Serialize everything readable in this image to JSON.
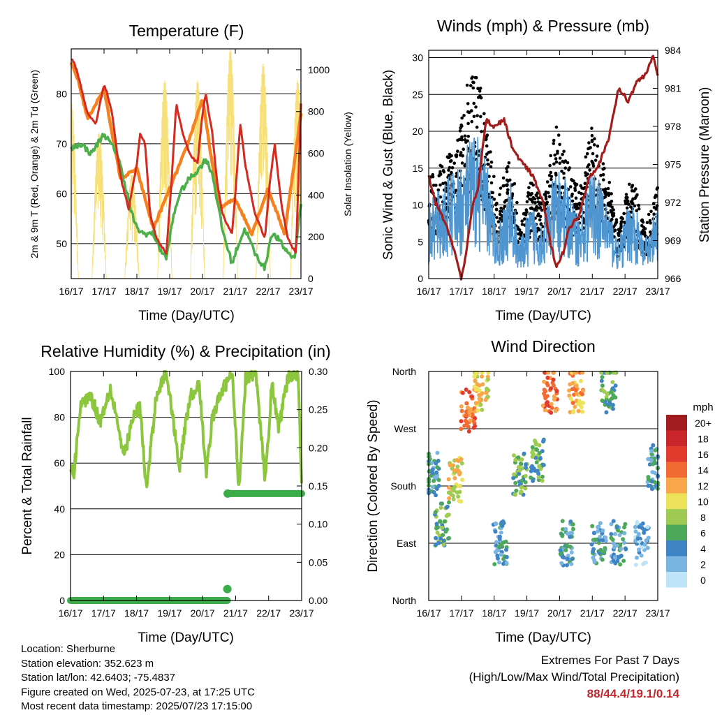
{
  "charts": {
    "temperature": {
      "title": "Temperature (F)",
      "xlabel": "Time (Day/UTC)",
      "ylabel": "2m & 9m T (Red, Orange) & 2m Td (Green)",
      "y2label": "Solar Insolation (Yellow)",
      "xticks": [
        "16/17",
        "17/17",
        "18/17",
        "19/17",
        "20/17",
        "21/17",
        "22/17",
        "23/17"
      ],
      "yticks": [
        "50",
        "60",
        "70",
        "80"
      ],
      "y2ticks": [
        "0",
        "200",
        "400",
        "600",
        "800",
        "1000"
      ]
    },
    "winds": {
      "title": "Winds (mph) & Pressure (mb)",
      "xlabel": "Time (Day/UTC)",
      "ylabel": "Sonic Wind & Gust (Blue, Black)",
      "y2label": "Station Pressure (Maroon)",
      "xticks": [
        "16/17",
        "17/17",
        "18/17",
        "19/17",
        "20/17",
        "21/17",
        "22/17",
        "23/17"
      ],
      "yticks": [
        "0",
        "5",
        "10",
        "15",
        "20",
        "25",
        "30"
      ],
      "y2ticks": [
        "966",
        "969",
        "972",
        "975",
        "978",
        "981",
        "984"
      ]
    },
    "humidity": {
      "title": "Relative Humidity (%) & Precipitation (in)",
      "xlabel": "Time (Day/UTC)",
      "ylabel": "Percent & Total Rainfall",
      "xticks": [
        "16/17",
        "17/17",
        "18/17",
        "19/17",
        "20/17",
        "21/17",
        "22/17",
        "23/17"
      ],
      "yticks": [
        "0",
        "20",
        "40",
        "60",
        "80",
        "100"
      ],
      "y2ticks": [
        "0.00",
        "0.05",
        "0.10",
        "0.15",
        "0.20",
        "0.25",
        "0.30"
      ]
    },
    "direction": {
      "title": "Wind Direction",
      "xlabel": "Time (Day/UTC)",
      "ylabel": "Direction (Colored By Speed)",
      "xticks": [
        "16/17",
        "17/17",
        "18/17",
        "19/17",
        "20/17",
        "21/17",
        "22/17",
        "23/17"
      ],
      "yticks": [
        "North",
        "East",
        "South",
        "West",
        "North"
      ],
      "legend_title": "mph",
      "legend_labels": [
        "20+",
        "18",
        "16",
        "14",
        "12",
        "10",
        "8",
        "6",
        "4",
        "2",
        "0"
      ],
      "legend_colors": [
        "#a01c1e",
        "#c9262b",
        "#e23a2d",
        "#f26b33",
        "#f9a64a",
        "#ede35a",
        "#9fcb52",
        "#4ea85a",
        "#3f84c4",
        "#7ab5e2",
        "#bfe3f7"
      ]
    }
  },
  "info": {
    "location": "Location: Sherburne",
    "elevation": "Station elevation: 352.623 m",
    "latlon": "Station lat/lon: 42.6403; -75.4837",
    "created": "Figure created on Wed, 2025-07-23, at 17:25 UTC",
    "recent": "Most recent data timestamp: 2025/07/23 17:15:00"
  },
  "extremes": {
    "title": "Extremes For Past 7 Days",
    "subtitle": "(High/Low/Max Wind/Total Precipitation)",
    "values": "88/44.4/19.1/0.14"
  },
  "colors": {
    "temp2m": "#d42a20",
    "temp9m": "#f5821f",
    "dewpoint": "#4daf4a",
    "solar": "#f7e07a",
    "gust": "#000000",
    "wind": "#4f96d1",
    "pressure": "#a31d1d",
    "rh": "#8cc63e",
    "precip": "#3aad48"
  },
  "chart_data": [
    {
      "type": "line",
      "title": "Temperature (F)",
      "x_range": [
        "16/17",
        "23/17"
      ],
      "x_days": [
        0,
        1,
        2,
        3,
        4,
        5,
        6,
        7
      ],
      "ylim": [
        43,
        89
      ],
      "y2lim": [
        0,
        1100
      ],
      "series": [
        {
          "name": "2m T (Red)",
          "x": [
            0,
            0.1,
            0.2,
            0.35,
            0.5,
            0.75,
            1.0,
            1.1,
            1.25,
            1.4,
            1.55,
            1.75,
            2.0,
            2.1,
            2.25,
            2.4,
            2.6,
            2.9,
            3.05,
            3.2,
            3.4,
            3.6,
            3.85,
            4.0,
            4.1,
            4.3,
            4.45,
            4.6,
            4.9,
            5.0,
            5.15,
            5.3,
            5.6,
            5.9,
            6.05,
            6.2,
            6.4,
            6.6,
            6.85,
            7.0
          ],
          "y": [
            87,
            86,
            84,
            80,
            76,
            74,
            82,
            80,
            76,
            68,
            62,
            57,
            66,
            72,
            70,
            56,
            51,
            48,
            62,
            78,
            72,
            68,
            66,
            76,
            80,
            72,
            62,
            56,
            52,
            60,
            74,
            66,
            56,
            51,
            62,
            70,
            58,
            51,
            48,
            78
          ]
        },
        {
          "name": "9m T (Orange)",
          "x": [
            0,
            0.2,
            0.5,
            1.0,
            1.5,
            2.0,
            2.5,
            3.0,
            3.5,
            4.0,
            4.5,
            5.0,
            5.5,
            6.0,
            6.5,
            7.0
          ],
          "y": [
            86,
            83,
            75,
            81,
            63,
            65,
            53,
            61,
            69,
            79,
            57,
            59,
            52,
            61,
            52,
            76
          ]
        },
        {
          "name": "2m Td (Green)",
          "x": [
            0,
            0.3,
            0.6,
            1.0,
            1.2,
            1.4,
            1.6,
            1.8,
            2.0,
            2.2,
            2.5,
            2.7,
            2.9,
            3.1,
            3.3,
            3.6,
            3.9,
            4.1,
            4.3,
            4.6,
            4.9,
            5.1,
            5.3,
            5.6,
            5.9,
            6.1,
            6.3,
            6.5,
            6.8,
            7.0
          ],
          "y": [
            69,
            70,
            68,
            72,
            70,
            68,
            63,
            57,
            53,
            52,
            52,
            49,
            47,
            55,
            60,
            63,
            65,
            67,
            64,
            53,
            46,
            50,
            53,
            48,
            45,
            52,
            51,
            49,
            47,
            58
          ]
        },
        {
          "name": "Solar Insolation (Yellow)",
          "axis": "y2",
          "peaks": [
            {
              "x": 0.0,
              "peak": 850
            },
            {
              "x": 0.85,
              "peak": 700
            },
            {
              "x": 1.85,
              "peak": 500
            },
            {
              "x": 2.85,
              "peak": 950
            },
            {
              "x": 3.85,
              "peak": 950
            },
            {
              "x": 4.85,
              "peak": 1100
            },
            {
              "x": 5.85,
              "peak": 1030
            },
            {
              "x": 6.9,
              "peak": 950
            }
          ]
        }
      ]
    },
    {
      "type": "scatter",
      "title": "Winds (mph) & Pressure (mb)",
      "x_range": [
        "16/17",
        "23/17"
      ],
      "ylim": [
        0,
        31
      ],
      "y2lim": [
        966,
        984
      ],
      "series": [
        {
          "name": "Sonic Wind (Blue)",
          "profile_x": [
            0,
            0.5,
            0.9,
            1.2,
            1.5,
            1.8,
            2.1,
            2.5,
            2.8,
            3.1,
            3.5,
            3.9,
            4.2,
            4.6,
            5.0,
            5.4,
            5.8,
            6.2,
            6.6,
            7.0
          ],
          "profile_y": [
            6,
            8,
            9,
            11,
            12,
            9,
            4,
            8,
            3,
            6,
            5,
            9,
            8,
            5,
            9,
            7,
            3,
            7,
            3,
            6
          ]
        },
        {
          "name": "Gust (Black)",
          "profile_x": [
            0,
            0.5,
            0.9,
            1.2,
            1.5,
            1.8,
            2.1,
            2.5,
            2.8,
            3.1,
            3.5,
            3.9,
            4.2,
            4.6,
            5.0,
            5.4,
            5.8,
            6.2,
            6.6,
            7.0
          ],
          "profile_y": [
            10,
            12,
            14,
            20,
            22,
            15,
            8,
            13,
            5,
            10,
            8,
            16,
            12,
            9,
            16,
            12,
            5,
            11,
            5,
            10
          ]
        },
        {
          "name": "Station Pressure (Maroon)",
          "axis": "y2",
          "x": [
            0,
            0.2,
            0.4,
            0.7,
            1.0,
            1.15,
            1.35,
            1.5,
            1.75,
            2.0,
            2.3,
            2.6,
            2.9,
            3.2,
            3.5,
            3.7,
            3.9,
            4.1,
            4.3,
            4.6,
            4.9,
            5.2,
            5.5,
            5.8,
            6.1,
            6.35,
            6.6,
            6.85,
            7.0
          ],
          "y": [
            974,
            972,
            971,
            969,
            966,
            968,
            972,
            973,
            978.5,
            978,
            978.5,
            976,
            975,
            974,
            972,
            969,
            967,
            968,
            970,
            971,
            974,
            975,
            977,
            981,
            980,
            981.5,
            982,
            983.5,
            982
          ]
        }
      ]
    },
    {
      "type": "line",
      "title": "Relative Humidity (%) & Precipitation (in)",
      "x_range": [
        "16/17",
        "23/17"
      ],
      "ylim": [
        0,
        100
      ],
      "y2lim": [
        0,
        0.3
      ],
      "series": [
        {
          "name": "Relative Humidity",
          "x": [
            0,
            0.1,
            0.3,
            0.6,
            0.9,
            1.2,
            1.4,
            1.6,
            1.9,
            2.1,
            2.3,
            2.6,
            2.9,
            3.1,
            3.3,
            3.6,
            3.9,
            4.1,
            4.3,
            4.6,
            4.9,
            5.1,
            5.3,
            5.6,
            5.9,
            6.1,
            6.3,
            6.6,
            6.9,
            7.0
          ],
          "y": [
            58,
            55,
            85,
            90,
            78,
            93,
            80,
            62,
            80,
            85,
            48,
            90,
            100,
            80,
            58,
            88,
            95,
            55,
            80,
            92,
            99,
            48,
            97,
            100,
            52,
            95,
            75,
            98,
            99,
            50
          ]
        },
        {
          "name": "Total Precipitation",
          "axis": "y2",
          "x": [
            0,
            4.75,
            4.76,
            7.0
          ],
          "y": [
            0.0,
            0.0,
            0.14,
            0.14
          ]
        }
      ]
    },
    {
      "type": "scatter",
      "title": "Wind Direction",
      "x_range": [
        "16/17",
        "23/17"
      ],
      "ylim": [
        "North",
        "East",
        "South",
        "West",
        "North"
      ],
      "series": [
        {
          "name": "Direction (Colored By Speed)",
          "clusters": [
            {
              "x": 0.1,
              "dir": 200,
              "speed": 4
            },
            {
              "x": 0.4,
              "dir": 120,
              "speed": 6
            },
            {
              "x": 0.8,
              "dir": 190,
              "speed": 10
            },
            {
              "x": 1.2,
              "dir": 300,
              "speed": 14
            },
            {
              "x": 1.6,
              "dir": 330,
              "speed": 10
            },
            {
              "x": 2.2,
              "dir": 90,
              "speed": 4
            },
            {
              "x": 2.8,
              "dir": 200,
              "speed": 6
            },
            {
              "x": 3.3,
              "dir": 220,
              "speed": 6
            },
            {
              "x": 3.7,
              "dir": 330,
              "speed": 14
            },
            {
              "x": 4.2,
              "dir": 90,
              "speed": 4
            },
            {
              "x": 4.5,
              "dir": 330,
              "speed": 12
            },
            {
              "x": 5.2,
              "dir": 90,
              "speed": 4
            },
            {
              "x": 5.5,
              "dir": 330,
              "speed": 6
            },
            {
              "x": 5.8,
              "dir": 90,
              "speed": 4
            },
            {
              "x": 6.5,
              "dir": 90,
              "speed": 2
            },
            {
              "x": 6.9,
              "dir": 210,
              "speed": 4
            }
          ]
        }
      ]
    }
  ]
}
